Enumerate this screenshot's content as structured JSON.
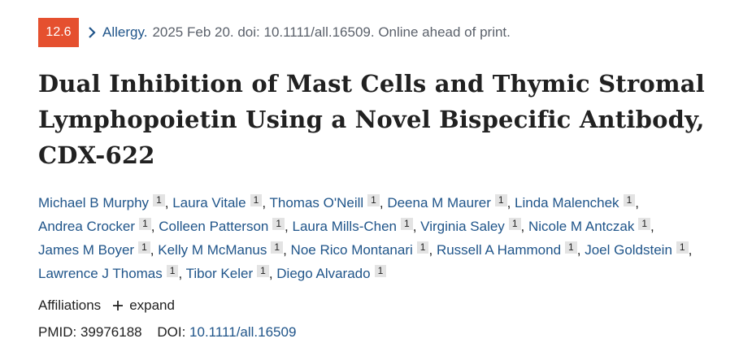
{
  "citation": {
    "badge": "12.6",
    "journal": "Allergy.",
    "details": "2025 Feb 20. doi: 10.1111/all.16509. Online ahead of print."
  },
  "title": "Dual Inhibition of Mast Cells and Thymic Stromal Lymphopoietin Using a Novel Bispecific Antibody, CDX-622",
  "authors": [
    {
      "name": "Michael B Murphy",
      "aff": "1"
    },
    {
      "name": "Laura Vitale",
      "aff": "1"
    },
    {
      "name": "Thomas O'Neill",
      "aff": "1"
    },
    {
      "name": "Deena M Maurer",
      "aff": "1"
    },
    {
      "name": "Linda Malenchek",
      "aff": "1"
    },
    {
      "name": "Andrea Crocker",
      "aff": "1"
    },
    {
      "name": "Colleen Patterson",
      "aff": "1"
    },
    {
      "name": "Laura Mills-Chen",
      "aff": "1"
    },
    {
      "name": "Virginia Saley",
      "aff": "1"
    },
    {
      "name": "Nicole M Antczak",
      "aff": "1"
    },
    {
      "name": "James M Boyer",
      "aff": "1"
    },
    {
      "name": "Kelly M McManus",
      "aff": "1"
    },
    {
      "name": "Noe Rico Montanari",
      "aff": "1"
    },
    {
      "name": "Russell A Hammond",
      "aff": "1"
    },
    {
      "name": "Joel Goldstein",
      "aff": "1"
    },
    {
      "name": "Lawrence J Thomas",
      "aff": "1"
    },
    {
      "name": "Tibor Keler",
      "aff": "1"
    },
    {
      "name": "Diego Alvarado",
      "aff": "1"
    }
  ],
  "affiliations": {
    "label": "Affiliations",
    "expand_label": "expand"
  },
  "identifiers": {
    "pmid_label": "PMID:",
    "pmid": "39976188",
    "doi_label": "DOI:",
    "doi": "10.1111/all.16509"
  },
  "colors": {
    "badge": "#e5502f",
    "link": "#20558a"
  }
}
